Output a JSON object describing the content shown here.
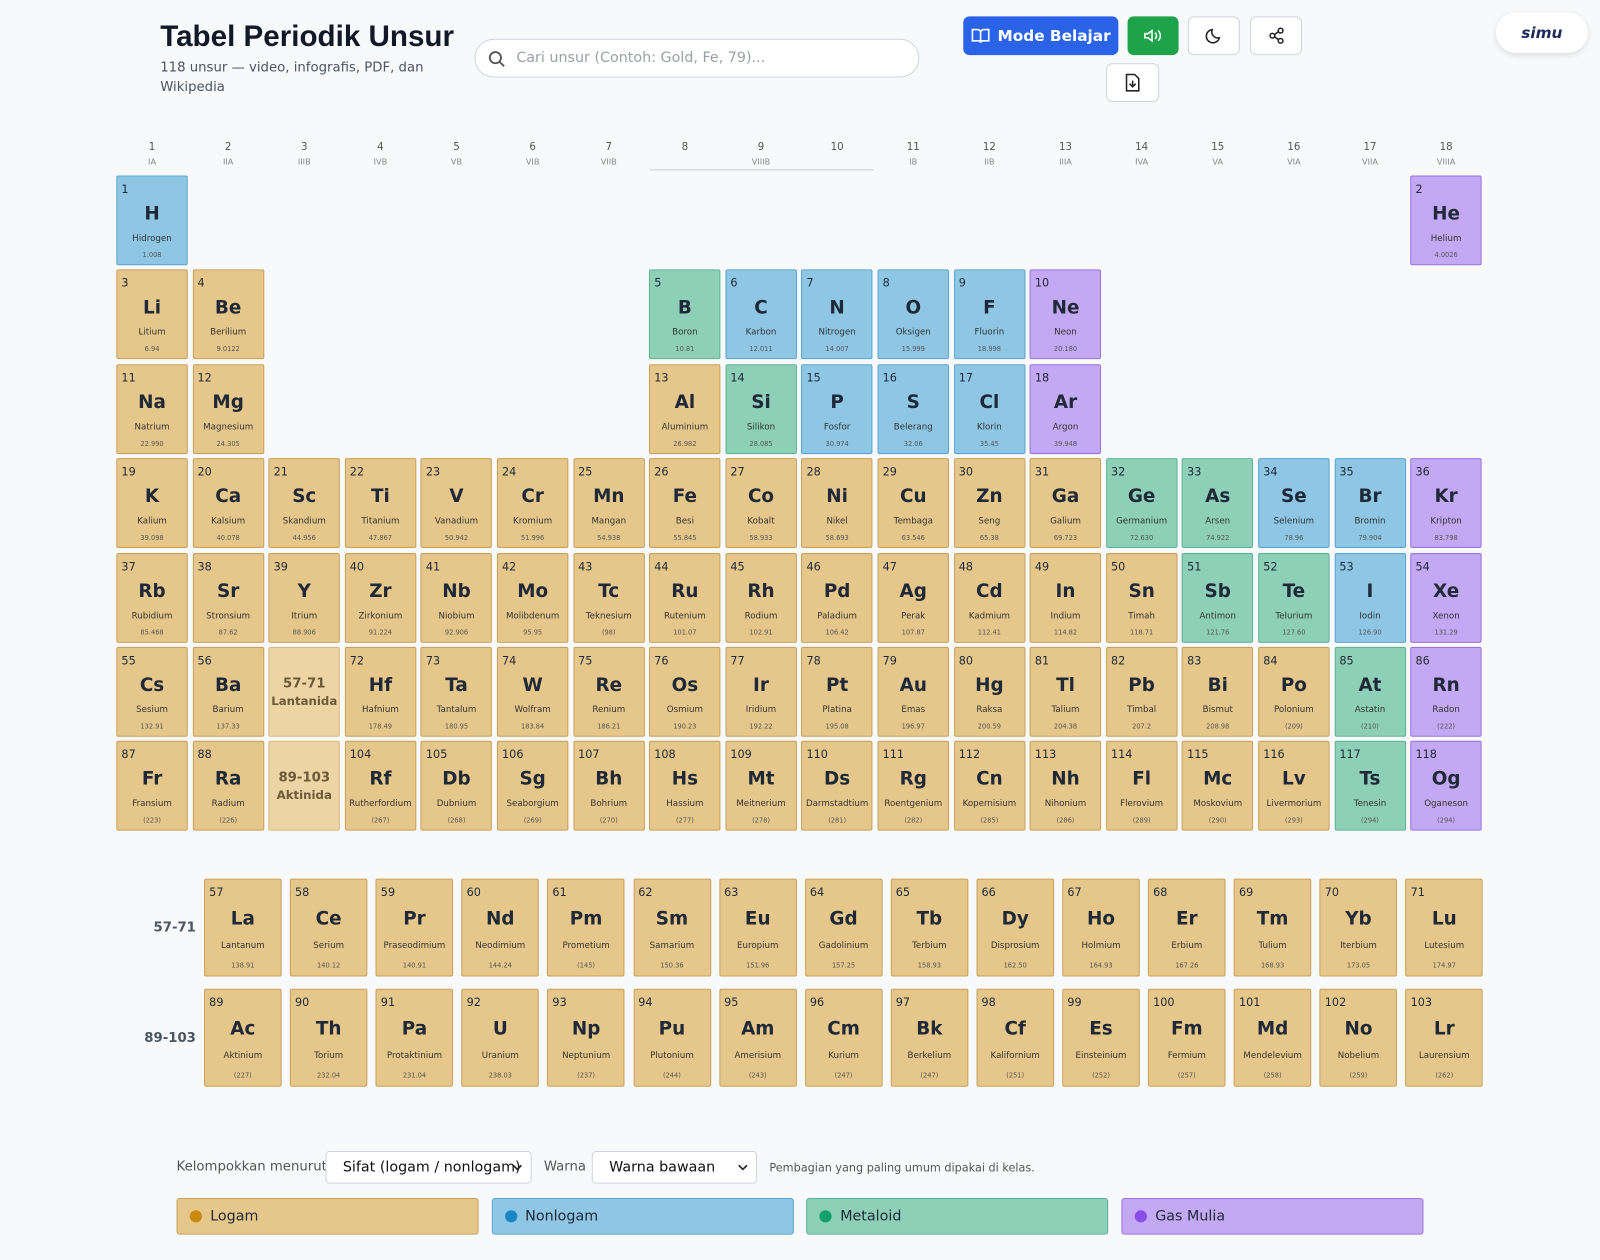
{
  "header": {
    "title": "Tabel Periodik Unsur",
    "subtitle": "118 unsur — video, infografis, PDF, dan Wikipedia",
    "search_placeholder": "Cari unsur (Contoh: Gold, Fe, 79)...",
    "learn_button": "Mode Belajar",
    "logo": "simu"
  },
  "groups": [
    {
      "number": 1,
      "roman": "IA"
    },
    {
      "number": 2,
      "roman": "IIA"
    },
    {
      "number": 3,
      "roman": "IIIB"
    },
    {
      "number": 4,
      "roman": "IVB"
    },
    {
      "number": 5,
      "roman": "VB"
    },
    {
      "number": 6,
      "roman": "VIB"
    },
    {
      "number": 7,
      "roman": "VIIB"
    },
    {
      "number": 8
    },
    {
      "number": 9,
      "roman": "VIIIB"
    },
    {
      "number": 10
    },
    {
      "number": 11,
      "roman": "IB"
    },
    {
      "number": 12,
      "roman": "IIB"
    },
    {
      "number": 13,
      "roman": "IIIA"
    },
    {
      "number": 14,
      "roman": "IVA"
    },
    {
      "number": 15,
      "roman": "VA"
    },
    {
      "number": 16,
      "roman": "VIA"
    },
    {
      "number": 17,
      "roman": "VIIA"
    },
    {
      "number": 18,
      "roman": "VIIIA"
    }
  ],
  "blocks": [
    {
      "range": "57-71",
      "label": "Lantanida"
    },
    {
      "range": "89-103",
      "label": "Aktinida"
    }
  ],
  "elements": [
    [
      1,
      "H",
      "Hidrogen",
      "1.008"
    ],
    [
      2,
      "He",
      "Helium",
      "4.0026"
    ],
    [
      3,
      "Li",
      "Litium",
      "6.94"
    ],
    [
      4,
      "Be",
      "Berilium",
      "9.0122"
    ],
    [
      5,
      "B",
      "Boron",
      "10.81"
    ],
    [
      6,
      "C",
      "Karbon",
      "12.011"
    ],
    [
      7,
      "N",
      "Nitrogen",
      "14.007"
    ],
    [
      8,
      "O",
      "Oksigen",
      "15.999"
    ],
    [
      9,
      "F",
      "Fluorin",
      "18.998"
    ],
    [
      10,
      "Ne",
      "Neon",
      "20.180"
    ],
    [
      11,
      "Na",
      "Natrium",
      "22.990"
    ],
    [
      12,
      "Mg",
      "Magnesium",
      "24.305"
    ],
    [
      13,
      "Al",
      "Aluminium",
      "26.982"
    ],
    [
      14,
      "Si",
      "Silikon",
      "28.085"
    ],
    [
      15,
      "P",
      "Fosfor",
      "30.974"
    ],
    [
      16,
      "S",
      "Belerang",
      "32.06"
    ],
    [
      17,
      "Cl",
      "Klorin",
      "35.45"
    ],
    [
      18,
      "Ar",
      "Argon",
      "39.948"
    ],
    [
      19,
      "K",
      "Kalium",
      "39.098"
    ],
    [
      20,
      "Ca",
      "Kalsium",
      "40.078"
    ],
    [
      21,
      "Sc",
      "Skandium",
      "44.956"
    ],
    [
      22,
      "Ti",
      "Titanium",
      "47.867"
    ],
    [
      23,
      "V",
      "Vanadium",
      "50.942"
    ],
    [
      24,
      "Cr",
      "Kromium",
      "51.996"
    ],
    [
      25,
      "Mn",
      "Mangan",
      "54.938"
    ],
    [
      26,
      "Fe",
      "Besi",
      "55.845"
    ],
    [
      27,
      "Co",
      "Kobalt",
      "58.933"
    ],
    [
      28,
      "Ni",
      "Nikel",
      "58.693"
    ],
    [
      29,
      "Cu",
      "Tembaga",
      "63.546"
    ],
    [
      30,
      "Zn",
      "Seng",
      "65.38"
    ],
    [
      31,
      "Ga",
      "Galium",
      "69.723"
    ],
    [
      32,
      "Ge",
      "Germanium",
      "72.630"
    ],
    [
      33,
      "As",
      "Arsen",
      "74.922"
    ],
    [
      34,
      "Se",
      "Selenium",
      "78.96"
    ],
    [
      35,
      "Br",
      "Bromin",
      "79.904"
    ],
    [
      36,
      "Kr",
      "Kripton",
      "83.798"
    ],
    [
      37,
      "Rb",
      "Rubidium",
      "85.468"
    ],
    [
      38,
      "Sr",
      "Stronsium",
      "87.62"
    ],
    [
      39,
      "Y",
      "Itrium",
      "88.906"
    ],
    [
      40,
      "Zr",
      "Zirkonium",
      "91.224"
    ],
    [
      41,
      "Nb",
      "Niobium",
      "92.906"
    ],
    [
      42,
      "Mo",
      "Molibdenum",
      "95.95"
    ],
    [
      43,
      "Tc",
      "Teknesium",
      "(98)"
    ],
    [
      44,
      "Ru",
      "Rutenium",
      "101.07"
    ],
    [
      45,
      "Rh",
      "Rodium",
      "102.91"
    ],
    [
      46,
      "Pd",
      "Paladium",
      "106.42"
    ],
    [
      47,
      "Ag",
      "Perak",
      "107.87"
    ],
    [
      48,
      "Cd",
      "Kadmium",
      "112.41"
    ],
    [
      49,
      "In",
      "Indium",
      "114.82"
    ],
    [
      50,
      "Sn",
      "Timah",
      "118.71"
    ],
    [
      51,
      "Sb",
      "Antimon",
      "121.76"
    ],
    [
      52,
      "Te",
      "Telurium",
      "127.60"
    ],
    [
      53,
      "I",
      "Iodin",
      "126.90"
    ],
    [
      54,
      "Xe",
      "Xenon",
      "131.29"
    ],
    [
      55,
      "Cs",
      "Sesium",
      "132.91"
    ],
    [
      56,
      "Ba",
      "Barium",
      "137.33"
    ],
    [
      57,
      "La",
      "Lantanum",
      "138.91"
    ],
    [
      58,
      "Ce",
      "Serium",
      "140.12"
    ],
    [
      59,
      "Pr",
      "Praseodimium",
      "140.91"
    ],
    [
      60,
      "Nd",
      "Neodimium",
      "144.24"
    ],
    [
      61,
      "Pm",
      "Prometium",
      "(145)"
    ],
    [
      62,
      "Sm",
      "Samarium",
      "150.36"
    ],
    [
      63,
      "Eu",
      "Europium",
      "151.96"
    ],
    [
      64,
      "Gd",
      "Gadolinium",
      "157.25"
    ],
    [
      65,
      "Tb",
      "Terbium",
      "158.93"
    ],
    [
      66,
      "Dy",
      "Disprosium",
      "162.50"
    ],
    [
      67,
      "Ho",
      "Holmium",
      "164.93"
    ],
    [
      68,
      "Er",
      "Erbium",
      "167.26"
    ],
    [
      69,
      "Tm",
      "Tulium",
      "168.93"
    ],
    [
      70,
      "Yb",
      "Iterbium",
      "173.05"
    ],
    [
      71,
      "Lu",
      "Lutesium",
      "174.97"
    ],
    [
      72,
      "Hf",
      "Hafnium",
      "178.49"
    ],
    [
      73,
      "Ta",
      "Tantalum",
      "180.95"
    ],
    [
      74,
      "W",
      "Wolfram",
      "183.84"
    ],
    [
      75,
      "Re",
      "Renium",
      "186.21"
    ],
    [
      76,
      "Os",
      "Osmium",
      "190.23"
    ],
    [
      77,
      "Ir",
      "Iridium",
      "192.22"
    ],
    [
      78,
      "Pt",
      "Platina",
      "195.08"
    ],
    [
      79,
      "Au",
      "Emas",
      "196.97"
    ],
    [
      80,
      "Hg",
      "Raksa",
      "200.59"
    ],
    [
      81,
      "Tl",
      "Talium",
      "204.38"
    ],
    [
      82,
      "Pb",
      "Timbal",
      "207.2"
    ],
    [
      83,
      "Bi",
      "Bismut",
      "208.98"
    ],
    [
      84,
      "Po",
      "Polonium",
      "(209)"
    ],
    [
      85,
      "At",
      "Astatin",
      "(210)"
    ],
    [
      86,
      "Rn",
      "Radon",
      "(222)"
    ],
    [
      87,
      "Fr",
      "Fransium",
      "(223)"
    ],
    [
      88,
      "Ra",
      "Radium",
      "(226)"
    ],
    [
      89,
      "Ac",
      "Aktinium",
      "(227)"
    ],
    [
      90,
      "Th",
      "Torium",
      "232.04"
    ],
    [
      91,
      "Pa",
      "Protaktinium",
      "231.04"
    ],
    [
      92,
      "U",
      "Uranium",
      "238.03"
    ],
    [
      93,
      "Np",
      "Neptunium",
      "(237)"
    ],
    [
      94,
      "Pu",
      "Plutonium",
      "(244)"
    ],
    [
      95,
      "Am",
      "Amerisium",
      "(243)"
    ],
    [
      96,
      "Cm",
      "Kurium",
      "(247)"
    ],
    [
      97,
      "Bk",
      "Berkelium",
      "(247)"
    ],
    [
      98,
      "Cf",
      "Kalifornium",
      "(251)"
    ],
    [
      99,
      "Es",
      "Einsteinium",
      "(252)"
    ],
    [
      100,
      "Fm",
      "Fermium",
      "(257)"
    ],
    [
      101,
      "Md",
      "Mendelevium",
      "(258)"
    ],
    [
      102,
      "No",
      "Nobelium",
      "(259)"
    ],
    [
      103,
      "Lr",
      "Laurensium",
      "(262)"
    ],
    [
      104,
      "Rf",
      "Rutherfordium",
      "(267)"
    ],
    [
      105,
      "Db",
      "Dubnium",
      "(268)"
    ],
    [
      106,
      "Sg",
      "Seaborgium",
      "(269)"
    ],
    [
      107,
      "Bh",
      "Bohrium",
      "(270)"
    ],
    [
      108,
      "Hs",
      "Hassium",
      "(277)"
    ],
    [
      109,
      "Mt",
      "Meitnerium",
      "(278)"
    ],
    [
      110,
      "Ds",
      "Darmstadtium",
      "(281)"
    ],
    [
      111,
      "Rg",
      "Roentgenium",
      "(282)"
    ],
    [
      112,
      "Cn",
      "Kopernisium",
      "(285)"
    ],
    [
      113,
      "Nh",
      "Nihonium",
      "(286)"
    ],
    [
      114,
      "Fl",
      "Flerovium",
      "(289)"
    ],
    [
      115,
      "Mc",
      "Moskovium",
      "(290)"
    ],
    [
      116,
      "Lv",
      "Livermorium",
      "(293)"
    ],
    [
      117,
      "Ts",
      "Tenesin",
      "(294)"
    ],
    [
      118,
      "Og",
      "Oganeson",
      "(294)"
    ]
  ],
  "controls": {
    "group_label": "Kelompokkan menurut",
    "group_select": "Sifat (logam / nonlogam)",
    "color_label": "Warna",
    "color_select": "Warna bawaan",
    "note": "Pembagian yang paling umum dipakai di kelas."
  },
  "legend": [
    {
      "name": "Logam",
      "fill": "#e5c78b",
      "border": "#c9a15a",
      "dot": "#c98a12"
    },
    {
      "name": "Nonlogam",
      "fill": "#8ec6e4",
      "border": "#5aa5cf",
      "dot": "#1a86c6",
      "members": [
        1,
        6,
        7,
        8,
        9,
        15,
        16,
        17,
        34,
        35,
        53
      ]
    },
    {
      "name": "Metaloid",
      "fill": "#8ecfb8",
      "border": "#5db394",
      "dot": "#13a06c",
      "members": [
        5,
        14,
        32,
        33,
        51,
        52,
        85,
        117
      ]
    },
    {
      "name": "Gas Mulia",
      "fill": "#c3a8f3",
      "border": "#9a74e0",
      "dot": "#8a4fe8",
      "members": [
        2,
        10,
        18,
        36,
        54,
        86,
        118
      ]
    }
  ]
}
